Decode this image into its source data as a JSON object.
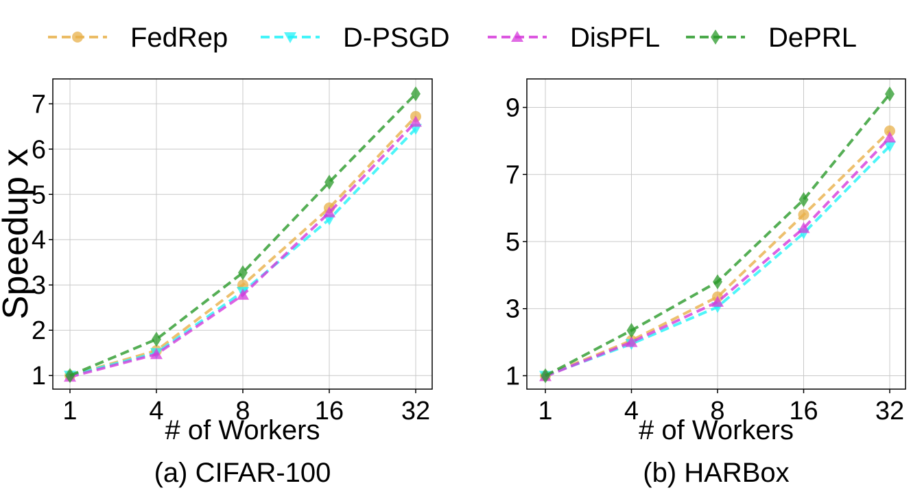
{
  "legend": {
    "placement": "top-center",
    "items": [
      {
        "name": "FedRep",
        "color": "#e8b04a",
        "marker": "circle-marker-icon"
      },
      {
        "name": "D-PSGD",
        "color": "#22f2f8",
        "marker": "down-triangle-marker-icon"
      },
      {
        "name": "DisPFL",
        "color": "#d63adb",
        "marker": "up-triangle-marker-icon"
      },
      {
        "name": "DePRL",
        "color": "#2a9a2a",
        "marker": "diamond-marker-icon"
      }
    ]
  },
  "chart_data": [
    {
      "type": "line",
      "title": "",
      "caption": "(a) CIFAR-100",
      "xlabel": "# of Workers",
      "ylabel": "Speedup x",
      "categories": [
        "1",
        "4",
        "8",
        "16",
        "32"
      ],
      "yticks": [
        "1",
        "2",
        "3",
        "4",
        "5",
        "6",
        "7"
      ],
      "ytick_values": [
        1,
        2,
        3,
        4,
        5,
        6,
        7
      ],
      "ylim": [
        0.7,
        7.55
      ],
      "grid": true,
      "series": [
        {
          "name": "FedRep",
          "values": [
            1.0,
            1.55,
            3.0,
            4.7,
            6.72
          ]
        },
        {
          "name": "D-PSGD",
          "values": [
            1.0,
            1.5,
            2.85,
            4.45,
            6.45
          ]
        },
        {
          "name": "DisPFL",
          "values": [
            0.97,
            1.47,
            2.78,
            4.6,
            6.6
          ]
        },
        {
          "name": "DePRL",
          "values": [
            1.0,
            1.8,
            3.27,
            5.27,
            7.22
          ]
        }
      ]
    },
    {
      "type": "line",
      "title": "",
      "caption": "(b) HARBox",
      "xlabel": "# of Workers",
      "ylabel": "",
      "categories": [
        "1",
        "4",
        "8",
        "16",
        "32"
      ],
      "yticks": [
        "1",
        "3",
        "5",
        "7",
        "9"
      ],
      "ytick_values": [
        1,
        3,
        5,
        7,
        9
      ],
      "ylim": [
        0.6,
        9.85
      ],
      "grid": true,
      "series": [
        {
          "name": "FedRep",
          "values": [
            1.0,
            2.05,
            3.35,
            5.8,
            8.3
          ]
        },
        {
          "name": "D-PSGD",
          "values": [
            1.0,
            1.95,
            3.05,
            5.25,
            7.85
          ]
        },
        {
          "name": "DisPFL",
          "values": [
            0.98,
            2.0,
            3.2,
            5.4,
            8.1
          ]
        },
        {
          "name": "DePRL",
          "values": [
            1.0,
            2.35,
            3.8,
            6.25,
            9.4
          ]
        }
      ]
    }
  ]
}
